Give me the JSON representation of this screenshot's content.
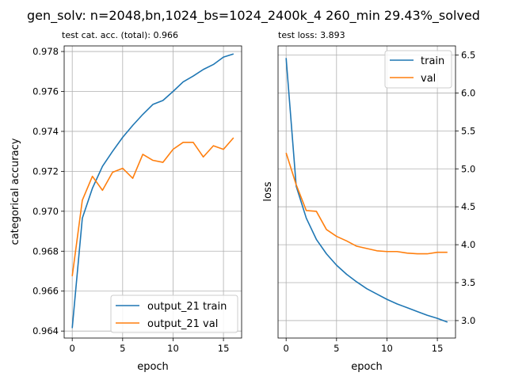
{
  "suptitle": "gen_solv: n=2048,bn,1024_bs=1024_2400k_4  260_min  29.43%_solved",
  "chart_data": [
    {
      "type": "line",
      "title": "test cat. acc. (total): 0.966",
      "xlabel": "epoch",
      "ylabel": "categorical accuracy",
      "xlim": [
        -0.8,
        16.8
      ],
      "ylim": [
        0.96365,
        0.97828
      ],
      "xticks": [
        0,
        5,
        10,
        15
      ],
      "xtick_labels": [
        "0",
        "5",
        "10",
        "15"
      ],
      "yticks": [
        0.964,
        0.966,
        0.968,
        0.97,
        0.972,
        0.974,
        0.976,
        0.978
      ],
      "ytick_labels": [
        "0.964",
        "0.966",
        "0.968",
        "0.970",
        "0.972",
        "0.974",
        "0.976",
        "0.978"
      ],
      "grid": true,
      "legend_position": "lower-right",
      "x": [
        0,
        1,
        2,
        3,
        4,
        5,
        6,
        7,
        8,
        9,
        10,
        11,
        12,
        13,
        14,
        15,
        16
      ],
      "series": [
        {
          "name": "output_21 train",
          "color": "#1f77b4",
          "values": [
            0.96415,
            0.96965,
            0.97115,
            0.97225,
            0.973,
            0.9737,
            0.9743,
            0.97485,
            0.97535,
            0.97555,
            0.976,
            0.97648,
            0.97677,
            0.9771,
            0.97735,
            0.97772,
            0.97788
          ]
        },
        {
          "name": "output_21 val",
          "color": "#ff7f0e",
          "values": [
            0.96675,
            0.97055,
            0.97175,
            0.97105,
            0.97195,
            0.97215,
            0.97165,
            0.97285,
            0.97255,
            0.97245,
            0.9731,
            0.97345,
            0.97345,
            0.97272,
            0.97328,
            0.9731,
            0.97368
          ]
        }
      ]
    },
    {
      "type": "line",
      "title": "test loss: 3.893",
      "xlabel": "epoch",
      "ylabel": "loss",
      "y_axis_side": "right",
      "xlim": [
        -0.8,
        16.8
      ],
      "ylim": [
        2.77,
        6.62
      ],
      "xticks": [
        0,
        5,
        10,
        15
      ],
      "xtick_labels": [
        "0",
        "5",
        "10",
        "15"
      ],
      "yticks": [
        3.0,
        3.5,
        4.0,
        4.5,
        5.0,
        5.5,
        6.0,
        6.5
      ],
      "ytick_labels": [
        "3.0",
        "3.5",
        "4.0",
        "4.5",
        "5.0",
        "5.5",
        "6.0",
        "6.5"
      ],
      "grid": true,
      "legend_position": "upper-right",
      "x": [
        0,
        1,
        2,
        3,
        4,
        5,
        6,
        7,
        8,
        9,
        10,
        11,
        12,
        13,
        14,
        15,
        16
      ],
      "series": [
        {
          "name": "train",
          "color": "#1f77b4",
          "values": [
            6.46,
            4.77,
            4.35,
            4.07,
            3.88,
            3.73,
            3.61,
            3.51,
            3.42,
            3.35,
            3.28,
            3.22,
            3.17,
            3.12,
            3.07,
            3.03,
            2.98
          ]
        },
        {
          "name": "val",
          "color": "#ff7f0e",
          "values": [
            5.21,
            4.79,
            4.45,
            4.44,
            4.2,
            4.11,
            4.05,
            3.98,
            3.95,
            3.92,
            3.91,
            3.91,
            3.89,
            3.88,
            3.88,
            3.9,
            3.9
          ]
        }
      ]
    }
  ]
}
